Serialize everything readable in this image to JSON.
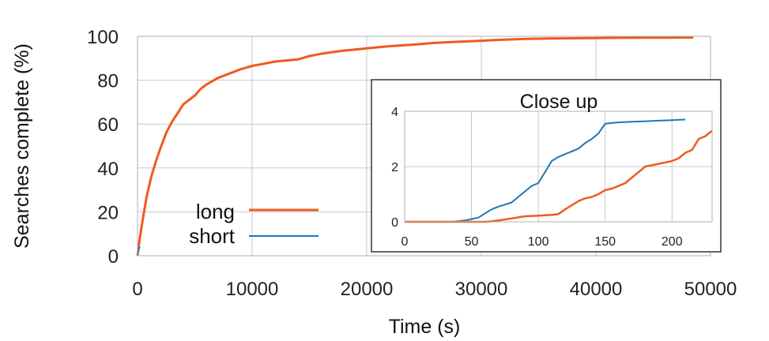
{
  "chart_data": [
    {
      "type": "line",
      "title": "",
      "xlabel": "Time (s)",
      "ylabel": "Searches complete (%)",
      "xlim": [
        0,
        50000
      ],
      "ylim": [
        0,
        100
      ],
      "xticks": [
        0,
        10000,
        20000,
        30000,
        40000,
        50000
      ],
      "yticks": [
        0,
        20,
        40,
        60,
        80,
        100
      ],
      "grid": true,
      "legend_position": "lower-left",
      "series": [
        {
          "name": "long",
          "color": "#f05a1e",
          "x": [
            0,
            200,
            500,
            800,
            1200,
            1600,
            2000,
            2500,
            3000,
            3500,
            4000,
            4500,
            5000,
            5500,
            6000,
            7000,
            8000,
            9000,
            10000,
            11000,
            12000,
            13000,
            14000,
            15000,
            16000,
            17000,
            18000,
            19000,
            20000,
            22000,
            24000,
            26000,
            28000,
            30000,
            32000,
            34000,
            36000,
            38000,
            40000,
            42000,
            44000,
            46000,
            48500
          ],
          "y": [
            0,
            8,
            18,
            27,
            36,
            43,
            49,
            56,
            61,
            65,
            69,
            71,
            73,
            76,
            78,
            81,
            83,
            85,
            86.5,
            87.5,
            88.5,
            89,
            89.5,
            91,
            92,
            92.8,
            93.5,
            94,
            94.5,
            95.5,
            96.2,
            97,
            97.5,
            98,
            98.5,
            98.8,
            99,
            99.1,
            99.2,
            99.3,
            99.4,
            99.4,
            99.5
          ]
        },
        {
          "name": "short",
          "color": "#1f77b4",
          "x": [
            0,
            50,
            100,
            150,
            200
          ],
          "y": [
            0,
            2,
            3,
            3.5,
            4
          ]
        }
      ]
    },
    {
      "type": "line",
      "title": "Close up",
      "xlabel": "",
      "ylabel": "",
      "xlim": [
        0,
        230
      ],
      "ylim": [
        0,
        4
      ],
      "xticks": [
        0,
        50,
        100,
        150,
        200
      ],
      "yticks": [
        0,
        2,
        4
      ],
      "grid": true,
      "series": [
        {
          "name": "short",
          "color": "#1f77b4",
          "x": [
            0,
            35,
            40,
            45,
            50,
            55,
            60,
            65,
            70,
            75,
            80,
            85,
            90,
            95,
            100,
            105,
            110,
            115,
            120,
            125,
            130,
            135,
            140,
            145,
            150,
            160,
            170,
            180,
            190,
            200,
            205,
            210
          ],
          "y": [
            0,
            0,
            0.02,
            0.05,
            0.1,
            0.15,
            0.3,
            0.45,
            0.55,
            0.62,
            0.7,
            0.9,
            1.1,
            1.3,
            1.4,
            1.8,
            2.2,
            2.35,
            2.45,
            2.55,
            2.65,
            2.85,
            3.0,
            3.2,
            3.55,
            3.6,
            3.62,
            3.64,
            3.66,
            3.68,
            3.69,
            3.7
          ]
        },
        {
          "name": "long",
          "color": "#f05a1e",
          "x": [
            0,
            62,
            70,
            80,
            90,
            100,
            110,
            115,
            120,
            125,
            130,
            135,
            140,
            145,
            150,
            155,
            160,
            165,
            170,
            175,
            180,
            185,
            190,
            195,
            200,
            205,
            210,
            215,
            220,
            225,
            230
          ],
          "y": [
            0,
            0,
            0.05,
            0.12,
            0.2,
            0.22,
            0.25,
            0.28,
            0.45,
            0.6,
            0.75,
            0.85,
            0.9,
            1.0,
            1.15,
            1.2,
            1.3,
            1.4,
            1.6,
            1.8,
            2.0,
            2.05,
            2.1,
            2.15,
            2.2,
            2.3,
            2.5,
            2.6,
            3.0,
            3.1,
            3.3
          ]
        }
      ]
    }
  ]
}
